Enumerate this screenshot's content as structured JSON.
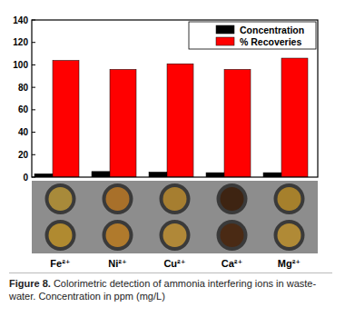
{
  "chart_data": {
    "type": "bar",
    "caption_label": "Figure 8.",
    "caption": "Colorimetric detection of ammonia interfering ions in waste-water. Concentration in ppm (mg/L)",
    "categories": [
      "Fe²⁺",
      "Ni²⁺",
      "Cu²⁺",
      "Ca²⁺",
      "Mg²⁺"
    ],
    "series": [
      {
        "name": "Concentration",
        "color": "#000000",
        "values": [
          3,
          5,
          4.5,
          4,
          4
        ]
      },
      {
        "name": "% Recoveries",
        "color": "#ff0000",
        "values": [
          104,
          96,
          101,
          96,
          106
        ]
      }
    ],
    "ylim": [
      0,
      140
    ],
    "yticks": [
      0,
      20,
      40,
      60,
      80,
      100,
      120,
      140
    ],
    "legend": "upper right",
    "grid": false
  }
}
